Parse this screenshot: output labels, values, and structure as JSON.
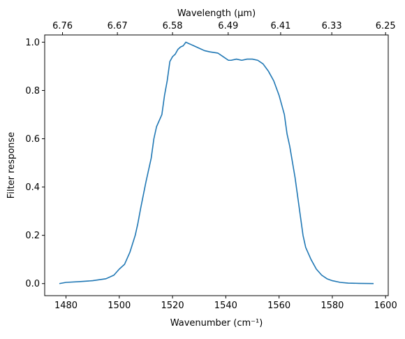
{
  "chart_data": {
    "type": "line",
    "title": "",
    "xlabel": "Wavenumber (cm⁻¹)",
    "ylabel": "Filter response",
    "top_xlabel": "Wavelength (μm)",
    "xlim": [
      1472,
      1601
    ],
    "ylim": [
      -0.05,
      1.03
    ],
    "grid": false,
    "legend": "none",
    "x_ticks": [
      1480,
      1500,
      1520,
      1540,
      1560,
      1580,
      1600
    ],
    "x_tick_labels": [
      "1480",
      "1500",
      "1520",
      "1540",
      "1560",
      "1580",
      "1600"
    ],
    "y_ticks": [
      0.0,
      0.2,
      0.4,
      0.6,
      0.8,
      1.0
    ],
    "y_tick_labels": [
      "0.0",
      "0.2",
      "0.4",
      "0.6",
      "0.8",
      "1.0"
    ],
    "top_x_ticks": [
      1478.7,
      1499.3,
      1520.0,
      1540.9,
      1560.6,
      1579.8,
      1600.0
    ],
    "top_x_tick_labels": [
      "6.76",
      "6.67",
      "6.58",
      "6.49",
      "6.41",
      "6.33",
      "6.25"
    ],
    "colors": {
      "line": "#1f77b4",
      "axes": "#000000"
    },
    "series": [
      {
        "x": [
          1477.5,
          1480,
          1485,
          1490,
          1495,
          1498,
          1500,
          1502,
          1504,
          1506,
          1507,
          1508,
          1510,
          1512,
          1513,
          1514,
          1516,
          1517,
          1518,
          1519,
          1520,
          1521,
          1522,
          1523,
          1524,
          1525,
          1526,
          1527,
          1528,
          1529,
          1530,
          1532,
          1534,
          1537,
          1539,
          1541,
          1542,
          1544,
          1546,
          1548,
          1550,
          1552,
          1554,
          1556,
          1558,
          1560,
          1562,
          1563,
          1564,
          1566,
          1567,
          1568,
          1569,
          1570,
          1572,
          1574,
          1576,
          1578,
          1580,
          1583,
          1586,
          1590,
          1595.5
        ],
        "y": [
          0.0,
          0.005,
          0.008,
          0.012,
          0.02,
          0.035,
          0.06,
          0.08,
          0.13,
          0.2,
          0.25,
          0.31,
          0.42,
          0.52,
          0.6,
          0.65,
          0.7,
          0.78,
          0.84,
          0.92,
          0.94,
          0.95,
          0.97,
          0.98,
          0.985,
          1.0,
          0.995,
          0.99,
          0.985,
          0.98,
          0.975,
          0.965,
          0.96,
          0.955,
          0.94,
          0.925,
          0.925,
          0.93,
          0.925,
          0.93,
          0.93,
          0.925,
          0.91,
          0.88,
          0.84,
          0.78,
          0.7,
          0.62,
          0.57,
          0.44,
          0.36,
          0.28,
          0.2,
          0.15,
          0.1,
          0.06,
          0.035,
          0.02,
          0.012,
          0.005,
          0.002,
          0.001,
          0.0
        ]
      }
    ]
  }
}
